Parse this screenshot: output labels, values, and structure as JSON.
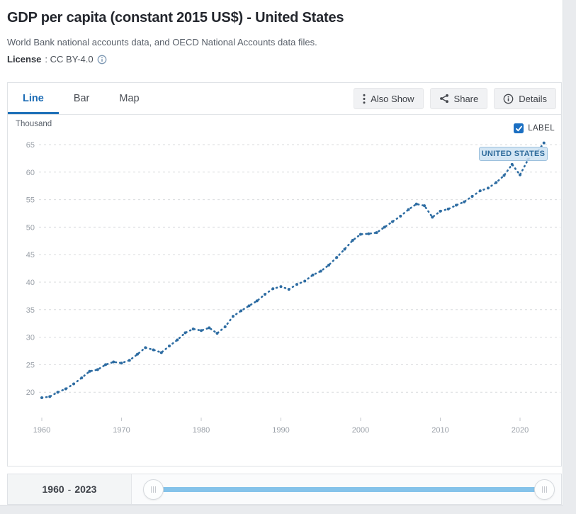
{
  "header": {
    "title": "GDP per capita (constant 2015 US$) - United States",
    "source": "World Bank national accounts data, and OECD National Accounts data files.",
    "license_label": "License",
    "license_value": ": CC BY-4.0"
  },
  "tabs": [
    {
      "label": "Line",
      "active": true
    },
    {
      "label": "Bar",
      "active": false
    },
    {
      "label": "Map",
      "active": false
    }
  ],
  "toolbar": {
    "also_show_label": "Also Show",
    "share_label": "Share",
    "details_label": "Details"
  },
  "chart_ui": {
    "unit_label": "Thousand",
    "label_checkbox_text": "LABEL",
    "label_checkbox_checked": true,
    "series_flag_text": "UNITED STATES"
  },
  "timeline": {
    "start_year": "1960",
    "separator": "-",
    "end_year": "2023"
  },
  "colors": {
    "accent_blue": "#1c6cb5",
    "line_blue": "#2d6ca2",
    "slider_track": "#85c3ea",
    "grid": "#d9dbde",
    "axis_text": "#9aa0a8",
    "tick_mark": "#c6cacf"
  },
  "chart_data": {
    "type": "line",
    "title": "GDP per capita (constant 2015 US$) - United States",
    "series_name": "United States",
    "unit": "Thousand (constant 2015 US$)",
    "legend_position": "none",
    "grid": "horizontal-dashed",
    "line_style": "dotted-dash",
    "color": "#2d6ca2",
    "x": [
      1960,
      1961,
      1962,
      1963,
      1964,
      1965,
      1966,
      1967,
      1968,
      1969,
      1970,
      1971,
      1972,
      1973,
      1974,
      1975,
      1976,
      1977,
      1978,
      1979,
      1980,
      1981,
      1982,
      1983,
      1984,
      1985,
      1986,
      1987,
      1988,
      1989,
      1990,
      1991,
      1992,
      1993,
      1994,
      1995,
      1996,
      1997,
      1998,
      1999,
      2000,
      2001,
      2002,
      2003,
      2004,
      2005,
      2006,
      2007,
      2008,
      2009,
      2010,
      2011,
      2012,
      2013,
      2014,
      2015,
      2016,
      2017,
      2018,
      2019,
      2020,
      2021,
      2022,
      2023
    ],
    "values": [
      19.0,
      19.2,
      20.0,
      20.6,
      21.5,
      22.6,
      23.8,
      24.1,
      25.0,
      25.5,
      25.3,
      25.8,
      26.9,
      28.1,
      27.7,
      27.2,
      28.4,
      29.5,
      30.8,
      31.5,
      31.2,
      31.7,
      30.7,
      31.9,
      33.8,
      34.8,
      35.7,
      36.6,
      37.8,
      38.8,
      39.2,
      38.7,
      39.6,
      40.2,
      41.3,
      42.0,
      43.1,
      44.5,
      46.0,
      47.6,
      48.7,
      48.8,
      49.0,
      50.0,
      51.0,
      52.0,
      53.2,
      54.2,
      53.9,
      51.8,
      52.9,
      53.3,
      54.0,
      54.6,
      55.6,
      56.6,
      57.1,
      58.1,
      59.4,
      61.4,
      59.5,
      62.3,
      63.4,
      65.3
    ],
    "yticks": [
      20,
      25,
      30,
      35,
      40,
      45,
      50,
      55,
      60,
      65
    ],
    "xticks": [
      1960,
      1970,
      1980,
      1990,
      2000,
      2010,
      2020
    ],
    "ylim": [
      17.8,
      66.5
    ],
    "xlim": [
      1959,
      2024.5
    ],
    "annotation": {
      "text": "UNITED STATES",
      "near_year": 2021
    }
  }
}
